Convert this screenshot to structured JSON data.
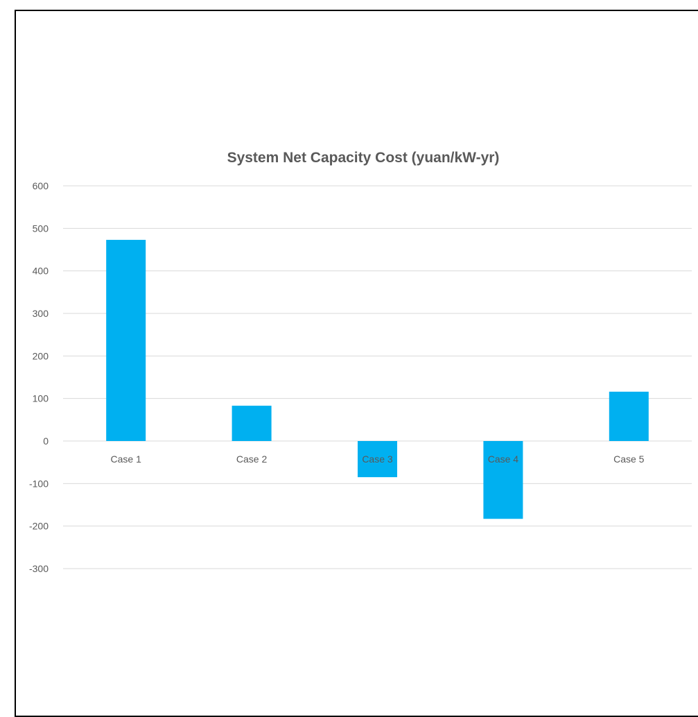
{
  "chart_data": {
    "type": "bar",
    "title": "System Net Capacity Cost (yuan/kW-yr)",
    "categories": [
      "Case 1",
      "Case 2",
      "Case 3",
      "Case 4",
      "Case 5"
    ],
    "values": [
      473,
      83,
      -85,
      -183,
      116
    ],
    "xlabel": "",
    "ylabel": "",
    "ylim": [
      -300,
      600
    ],
    "yticks": [
      -300,
      -200,
      -100,
      0,
      100,
      200,
      300,
      400,
      500,
      600
    ],
    "grid": true,
    "legend": "none",
    "bar_color": "#00B0F0",
    "grid_color": "#D9D9D9"
  }
}
